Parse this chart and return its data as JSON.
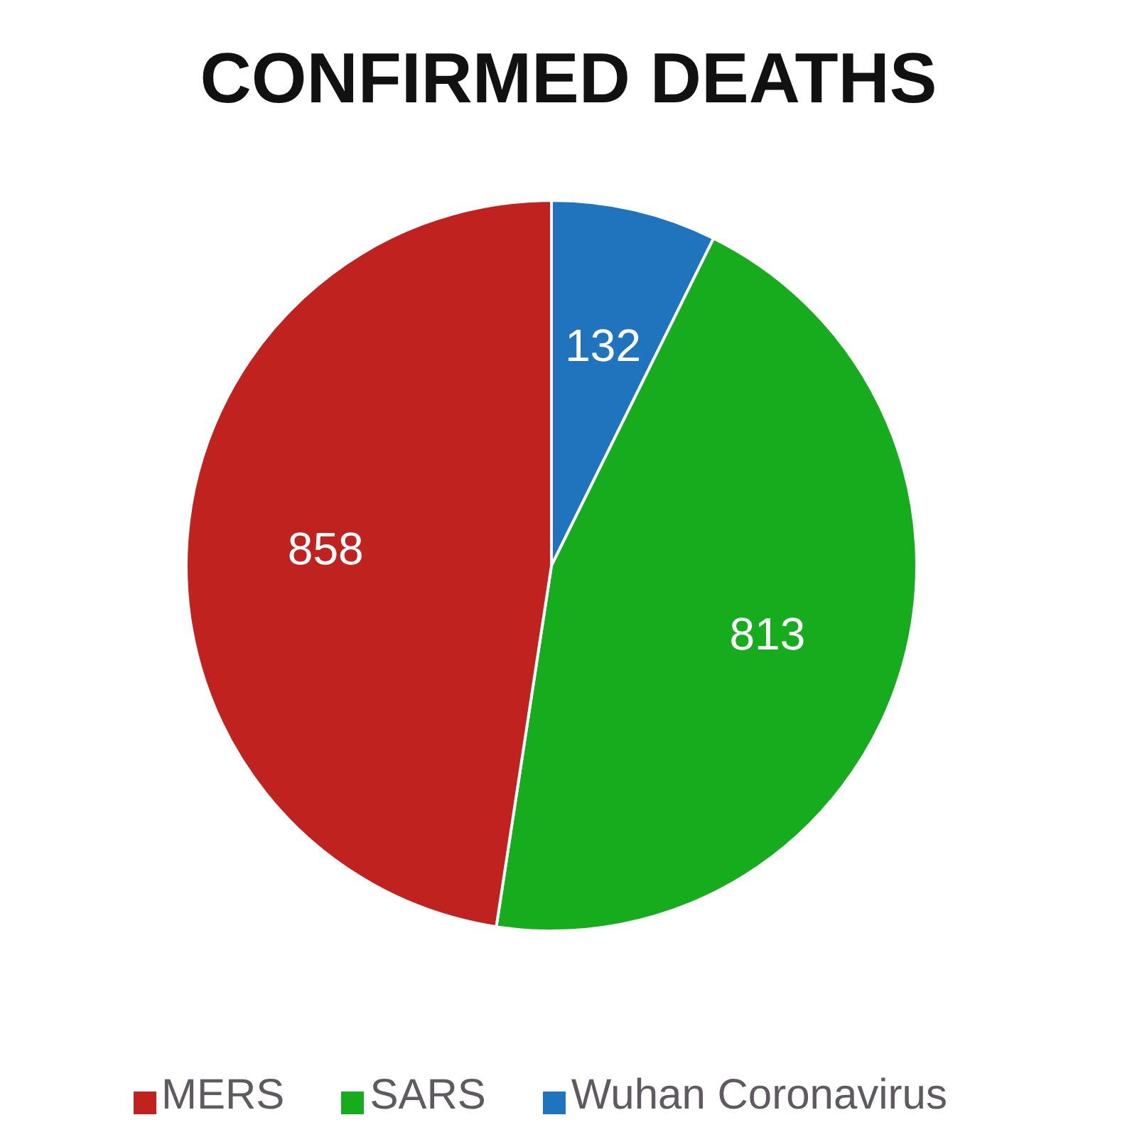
{
  "chart_data": {
    "type": "pie",
    "title": "CONFIRMED DEATHS",
    "categories": [
      "Wuhan Coronavirus",
      "SARS",
      "MERS"
    ],
    "values": [
      132,
      813,
      858
    ],
    "colors": [
      "#1f74bd",
      "#17ab1e",
      "#c0221f"
    ],
    "data_labels": true,
    "legend": "bottom"
  }
}
